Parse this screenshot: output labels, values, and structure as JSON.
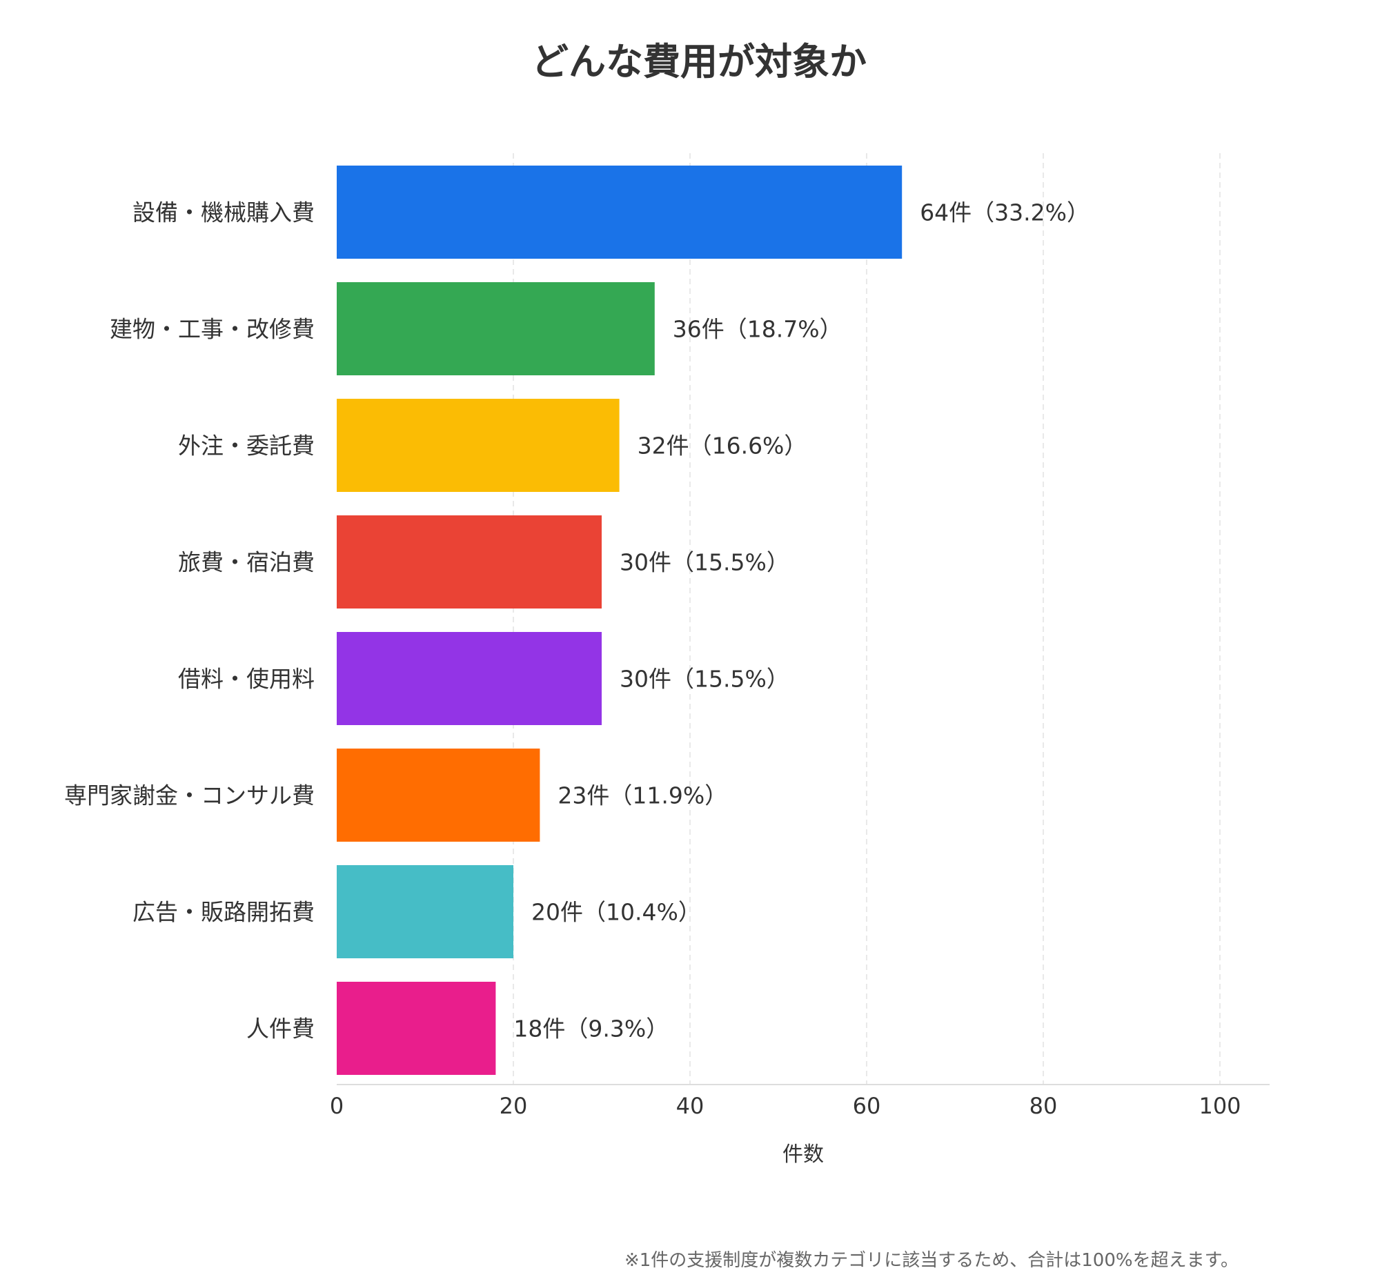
{
  "chart_data": {
    "type": "bar",
    "orientation": "horizontal",
    "title": "どんな費用が対象か",
    "xlabel": "件数",
    "ylabel": "",
    "xlim": [
      0,
      105
    ],
    "xticks": [
      0,
      20,
      40,
      60,
      80,
      100
    ],
    "grid": "vertical-dashed",
    "categories": [
      "設備・機械購入費",
      "建物・工事・改修費",
      "外注・委託費",
      "旅費・宿泊費",
      "借料・使用料",
      "専門家謝金・コンサル費",
      "広告・販路開拓費",
      "人件費"
    ],
    "values": [
      64,
      36,
      32,
      30,
      30,
      23,
      20,
      18
    ],
    "value_labels": [
      "64件（33.2%）",
      "36件（18.7%）",
      "32件（16.6%）",
      "30件（15.5%）",
      "30件（15.5%）",
      "23件（11.9%）",
      "20件（10.4%）",
      "18件（9.3%）"
    ],
    "colors": [
      "#1a73e8",
      "#34a853",
      "#fbbc04",
      "#ea4335",
      "#9334e6",
      "#ff6d01",
      "#46bdc6",
      "#e91e8c"
    ]
  },
  "footnote": "※1件の支援制度が複数カテゴリに該当するため、合計は100%を超えます。"
}
